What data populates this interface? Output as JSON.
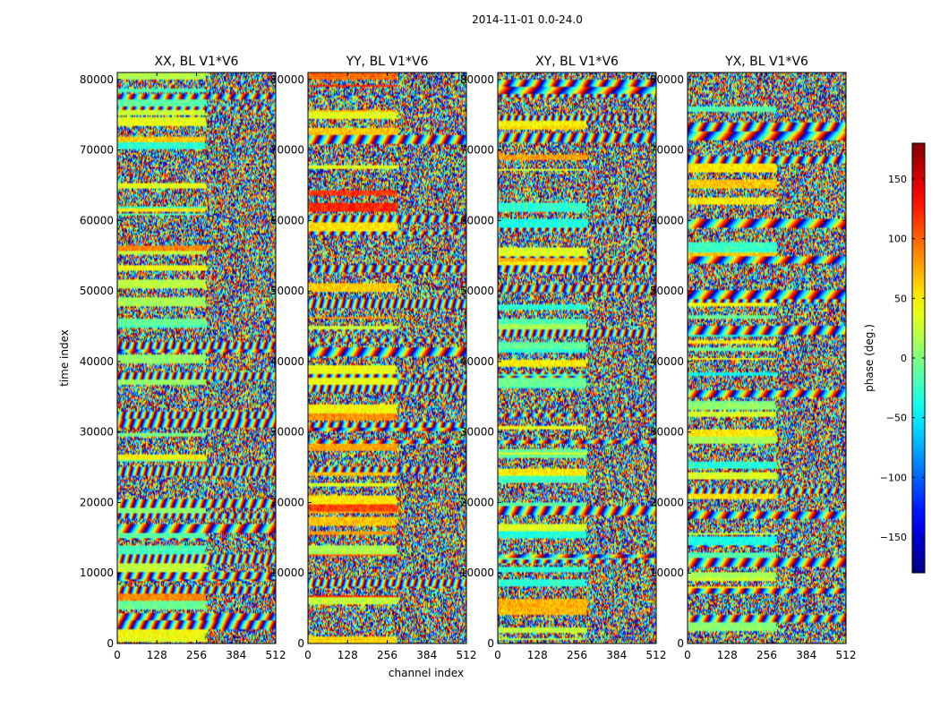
{
  "chart_data": {
    "type": "heatmap",
    "title": "2014-11-01 0.0-24.0",
    "xlabel": "channel index",
    "ylabel": "time index",
    "xlim": [
      0,
      512
    ],
    "ylim": [
      0,
      81000
    ],
    "x_ticks": [
      0,
      128,
      256,
      384,
      512
    ],
    "x_tick_labels": [
      "0",
      "128",
      "256",
      "384",
      "512"
    ],
    "y_ticks": [
      0,
      10000,
      20000,
      30000,
      40000,
      50000,
      60000,
      70000,
      80000
    ],
    "y_tick_labels": [
      "0",
      "10000",
      "20000",
      "30000",
      "40000",
      "50000",
      "60000",
      "70000",
      "80000"
    ],
    "panels": [
      {
        "id": "xx",
        "title": "XX, BL V1*V6",
        "bias": 0
      },
      {
        "id": "yy",
        "title": "YY, BL V1*V6",
        "bias": 40
      },
      {
        "id": "xy",
        "title": "XY, BL V1*V6",
        "bias": -10
      },
      {
        "id": "yx",
        "title": "YX, BL V1*V6",
        "bias": -20
      }
    ],
    "colorbar": {
      "label": "phase (deg.)",
      "range": [
        -180,
        180
      ],
      "ticks": [
        150,
        100,
        50,
        0,
        -50,
        -100,
        -150
      ],
      "tick_labels": [
        "150",
        "100",
        "50",
        "0",
        "−50",
        "−100",
        "−150"
      ],
      "colormap": "jet"
    },
    "note": "Phase waterfall; per-pixel values are noisy and rendered procedurally (random phase with horizontal banded structure)."
  }
}
